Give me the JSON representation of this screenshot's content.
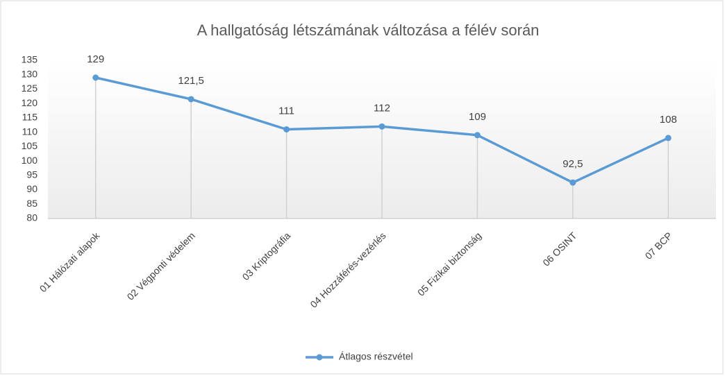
{
  "chart_data": {
    "type": "line",
    "title": "A hallgatóság létszámának változása a félév során",
    "categories": [
      "01 Hálózati alapok",
      "02 Végponti védelem",
      "03 Kriptográfia",
      "04 Hozzáférés-vezérlés",
      "05 Fizikai biztonság",
      "06 OSINT",
      "07 BCP"
    ],
    "series": [
      {
        "name": "Átlagos részvétel",
        "color": "#5b9bd5",
        "values": [
          129,
          121.5,
          111,
          112,
          109,
          92.5,
          108
        ],
        "value_labels": [
          "129",
          "121,5",
          "111",
          "112",
          "109",
          "92,5",
          "108"
        ]
      }
    ],
    "ylim": [
      80,
      135
    ],
    "yticks": [
      80,
      85,
      90,
      95,
      100,
      105,
      110,
      115,
      120,
      125,
      130,
      135
    ],
    "legend": "bottom"
  }
}
